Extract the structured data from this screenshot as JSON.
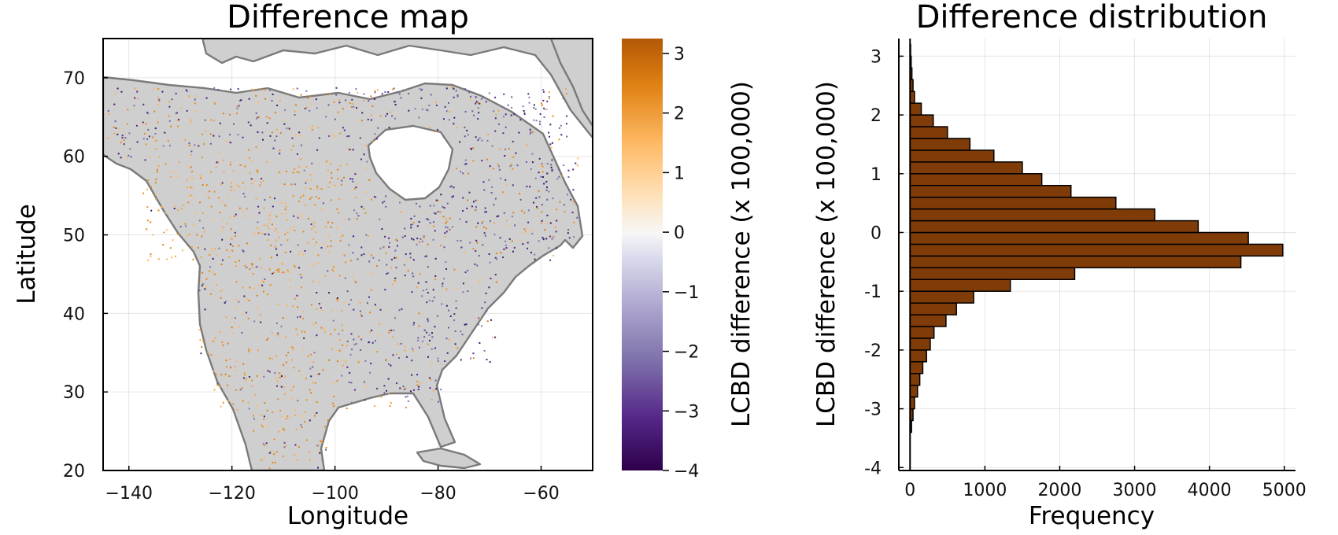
{
  "chart_data": [
    {
      "type": "heatmap",
      "title": "Difference map",
      "xlabel": "Longitude",
      "ylabel": "Latitude",
      "xlim": [
        -145,
        -50
      ],
      "ylim": [
        20,
        75
      ],
      "xticks": [
        -140,
        -120,
        -100,
        -80,
        -60
      ],
      "yticks": [
        20,
        30,
        40,
        50,
        60,
        70
      ],
      "xtick_labels": [
        "−140",
        "−120",
        "−100",
        "−80",
        "−60"
      ],
      "ytick_labels": [
        "20",
        "30",
        "40",
        "50",
        "60",
        "70"
      ],
      "grid": true,
      "colorbar": {
        "label": "LCBD difference (x 100,000)",
        "range": [
          -4.0,
          3.25
        ],
        "ticks": [
          -4,
          -3,
          -2,
          -1,
          0,
          1,
          2,
          3
        ],
        "tick_labels": [
          "−4",
          "−3",
          "−2",
          "−1",
          "0",
          "1",
          "2",
          "3"
        ],
        "colors": [
          "#2d004b",
          "#542788",
          "#8073ac",
          "#b2abd2",
          "#d8daeb",
          "#f7f7f7",
          "#fee0b6",
          "#fdb863",
          "#e08214",
          "#b35806"
        ]
      },
      "land_color": "#cfcfcf",
      "coast_color": "#7a7a7a"
    },
    {
      "type": "bar",
      "orientation": "horizontal",
      "title": "Difference distribution",
      "xlabel": "Frequency",
      "ylabel": "LCBD difference (x 100,000)",
      "xlim": [
        -150,
        5150
      ],
      "ylim": [
        -4.05,
        3.3
      ],
      "xticks": [
        0,
        1000,
        2000,
        3000,
        4000,
        5000
      ],
      "xtick_labels": [
        "0",
        "1000",
        "2000",
        "3000",
        "4000",
        "5000"
      ],
      "yticks": [
        -4,
        -3,
        -2,
        -1,
        0,
        1,
        2,
        3
      ],
      "ytick_labels": [
        "-4",
        "-3",
        "-2",
        "-1",
        "0",
        "1",
        "2",
        "3"
      ],
      "grid": true,
      "bar_color": "#7f3b08",
      "bin_width": 0.2,
      "bins": [
        {
          "lo": -3.4,
          "hi": -3.2,
          "count": 20
        },
        {
          "lo": -3.2,
          "hi": -3.0,
          "count": 40
        },
        {
          "lo": -3.0,
          "hi": -2.8,
          "count": 60
        },
        {
          "lo": -2.8,
          "hi": -2.6,
          "count": 100
        },
        {
          "lo": -2.6,
          "hi": -2.4,
          "count": 130
        },
        {
          "lo": -2.4,
          "hi": -2.2,
          "count": 170
        },
        {
          "lo": -2.2,
          "hi": -2.0,
          "count": 220
        },
        {
          "lo": -2.0,
          "hi": -1.8,
          "count": 270
        },
        {
          "lo": -1.8,
          "hi": -1.6,
          "count": 320
        },
        {
          "lo": -1.6,
          "hi": -1.4,
          "count": 480
        },
        {
          "lo": -1.4,
          "hi": -1.2,
          "count": 620
        },
        {
          "lo": -1.2,
          "hi": -1.0,
          "count": 850
        },
        {
          "lo": -1.0,
          "hi": -0.8,
          "count": 1340
        },
        {
          "lo": -0.8,
          "hi": -0.6,
          "count": 2200
        },
        {
          "lo": -0.6,
          "hi": -0.4,
          "count": 4420
        },
        {
          "lo": -0.4,
          "hi": -0.2,
          "count": 4980
        },
        {
          "lo": -0.2,
          "hi": 0.0,
          "count": 4520
        },
        {
          "lo": 0.0,
          "hi": 0.2,
          "count": 3850
        },
        {
          "lo": 0.2,
          "hi": 0.4,
          "count": 3270
        },
        {
          "lo": 0.4,
          "hi": 0.6,
          "count": 2750
        },
        {
          "lo": 0.6,
          "hi": 0.8,
          "count": 2150
        },
        {
          "lo": 0.8,
          "hi": 1.0,
          "count": 1760
        },
        {
          "lo": 1.0,
          "hi": 1.2,
          "count": 1500
        },
        {
          "lo": 1.2,
          "hi": 1.4,
          "count": 1120
        },
        {
          "lo": 1.4,
          "hi": 1.6,
          "count": 800
        },
        {
          "lo": 1.6,
          "hi": 1.8,
          "count": 500
        },
        {
          "lo": 1.8,
          "hi": 2.0,
          "count": 310
        },
        {
          "lo": 2.0,
          "hi": 2.2,
          "count": 150
        },
        {
          "lo": 2.2,
          "hi": 2.4,
          "count": 60
        },
        {
          "lo": 2.4,
          "hi": 2.6,
          "count": 40
        },
        {
          "lo": 2.6,
          "hi": 2.8,
          "count": 25
        },
        {
          "lo": 2.8,
          "hi": 3.0,
          "count": 15
        },
        {
          "lo": 3.0,
          "hi": 3.2,
          "count": 8
        }
      ]
    }
  ]
}
